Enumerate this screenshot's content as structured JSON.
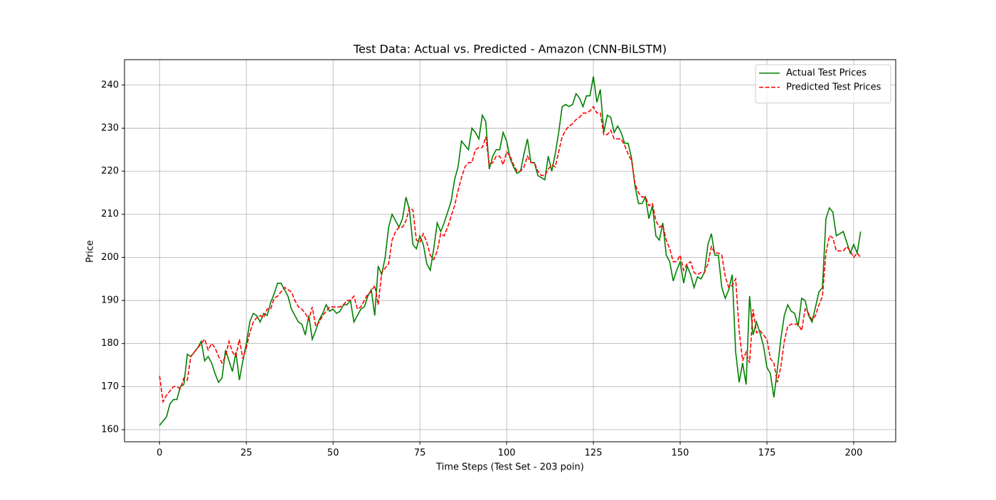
{
  "chart_data": {
    "type": "line",
    "title": "Test Data: Actual vs. Predicted - Amazon (CNN-BiLSTM)",
    "x_label": "Time Steps (Test Set - 203 poin)",
    "y_label": "Price",
    "x": [
      0,
      1,
      2,
      3,
      4,
      5,
      6,
      7,
      8,
      9,
      10,
      11,
      12,
      13,
      14,
      15,
      16,
      17,
      18,
      19,
      20,
      21,
      22,
      23,
      24,
      25,
      26,
      27,
      28,
      29,
      30,
      31,
      32,
      33,
      34,
      35,
      36,
      37,
      38,
      39,
      40,
      41,
      42,
      43,
      44,
      45,
      46,
      47,
      48,
      49,
      50,
      51,
      52,
      53,
      54,
      55,
      56,
      57,
      58,
      59,
      60,
      61,
      62,
      63,
      64,
      65,
      66,
      67,
      68,
      69,
      70,
      71,
      72,
      73,
      74,
      75,
      76,
      77,
      78,
      79,
      80,
      81,
      82,
      83,
      84,
      85,
      86,
      87,
      88,
      89,
      90,
      91,
      92,
      93,
      94,
      95,
      96,
      97,
      98,
      99,
      100,
      101,
      102,
      103,
      104,
      105,
      106,
      107,
      108,
      109,
      110,
      111,
      112,
      113,
      114,
      115,
      116,
      117,
      118,
      119,
      120,
      121,
      122,
      123,
      124,
      125,
      126,
      127,
      128,
      129,
      130,
      131,
      132,
      133,
      134,
      135,
      136,
      137,
      138,
      139,
      140,
      141,
      142,
      143,
      144,
      145,
      146,
      147,
      148,
      149,
      150,
      151,
      152,
      153,
      154,
      155,
      156,
      157,
      158,
      159,
      160,
      161,
      162,
      163,
      164,
      165,
      166,
      167,
      168,
      169,
      170,
      171,
      172,
      173,
      174,
      175,
      176,
      177,
      178,
      179,
      180,
      181,
      182,
      183,
      184,
      185,
      186,
      187,
      188,
      189,
      190,
      191,
      192,
      193,
      194,
      195,
      196,
      197,
      198,
      199,
      200,
      201,
      202
    ],
    "series": [
      {
        "name": "Actual Test Prices",
        "color": "#008000",
        "dash": "solid",
        "values": [
          161,
          162,
          163,
          166,
          167,
          167,
          170,
          170.5,
          177.5,
          177,
          178,
          179,
          180.5,
          176,
          177,
          175.5,
          173,
          171,
          172,
          178.5,
          176,
          173.5,
          178,
          171.5,
          176,
          180,
          185,
          187,
          186.5,
          185,
          187,
          186.5,
          189.5,
          191.5,
          194,
          194,
          192.5,
          191,
          188,
          186.5,
          185,
          184.5,
          182,
          186.5,
          181,
          183,
          185.5,
          187,
          189,
          187.5,
          188,
          187,
          187.5,
          189,
          189,
          190,
          185,
          186.5,
          188,
          188.5,
          191,
          192.5,
          186.5,
          198,
          196,
          200,
          207,
          210,
          208.5,
          207,
          209,
          214,
          211,
          203,
          202,
          205,
          203,
          198.5,
          197,
          202,
          208,
          206,
          208,
          210.5,
          213,
          218,
          221,
          227,
          226,
          225,
          230,
          229,
          227.5,
          233,
          231.5,
          220.5,
          223.5,
          225,
          225,
          229,
          227,
          223,
          221,
          219.5,
          220,
          224,
          227.5,
          222,
          222,
          219,
          218.5,
          218,
          223.5,
          220,
          224,
          229,
          235,
          235.5,
          235,
          235.5,
          238,
          237,
          235,
          237.5,
          237.5,
          242,
          236,
          239,
          229,
          233,
          232.5,
          229,
          230.5,
          229,
          226.5,
          226.5,
          223,
          216.5,
          212.5,
          212.5,
          214,
          209,
          212,
          205,
          204,
          208,
          200.5,
          199,
          194.5,
          197,
          199,
          194,
          198,
          196,
          193,
          195.5,
          195,
          196.5,
          203,
          205.5,
          200.5,
          200.5,
          193,
          190.5,
          192.5,
          196,
          178,
          171,
          175.5,
          170.5,
          191,
          182,
          185,
          182.5,
          179.5,
          174.5,
          173,
          167.5,
          174,
          181,
          186.5,
          189,
          187.5,
          187,
          184,
          190.5,
          190,
          186.5,
          185,
          188.5,
          192,
          193,
          209,
          211.5,
          210.5,
          205,
          205.5,
          206,
          203.5,
          201,
          203,
          201,
          206
        ]
      },
      {
        "name": "Predicted Test Prices",
        "color": "#ff0000",
        "dash": "dashed",
        "values": [
          172.5,
          166.5,
          168,
          169,
          170,
          170,
          169.5,
          172,
          171.5,
          177,
          178,
          179,
          180,
          181,
          178.5,
          180,
          179,
          177,
          175.5,
          177,
          180.5,
          178,
          177,
          181,
          176.5,
          179,
          182.5,
          185,
          186,
          186.5,
          186,
          188,
          188,
          190.5,
          191,
          192,
          193,
          192.5,
          192,
          190,
          188.5,
          188,
          187,
          185.5,
          188.5,
          184,
          185,
          186.5,
          187.5,
          188.5,
          188.5,
          188.5,
          188.5,
          189,
          190,
          190,
          191,
          188,
          188.5,
          190,
          191.5,
          192,
          193.5,
          189,
          196.5,
          197.5,
          198.5,
          204,
          206,
          207,
          207,
          208.5,
          211.5,
          211,
          204,
          203.5,
          205.5,
          203.5,
          200.5,
          199.5,
          201.5,
          205.5,
          205,
          207,
          209.5,
          212,
          215.5,
          218.5,
          221,
          222,
          222,
          225,
          225.5,
          225.5,
          228,
          221.5,
          222,
          223.5,
          223.5,
          221.5,
          224.5,
          223.5,
          221.5,
          220,
          220,
          221,
          223.5,
          222,
          222,
          220,
          219,
          219,
          220.5,
          221.5,
          221,
          224.5,
          228,
          229.5,
          230.5,
          231,
          232,
          232.5,
          233.5,
          233.5,
          234,
          235,
          233.5,
          233.5,
          228.5,
          228.5,
          229.5,
          227.5,
          227.5,
          227.5,
          226,
          224,
          222.5,
          217,
          215,
          214,
          214,
          212,
          212.5,
          208.5,
          207,
          207.5,
          204,
          202,
          199,
          199,
          200.5,
          197,
          198.5,
          199,
          196.5,
          196,
          196.5,
          196.5,
          198.5,
          202.5,
          201,
          201,
          200.5,
          195.5,
          193,
          193.5,
          195,
          183,
          176,
          178,
          175.5,
          188,
          182.5,
          183,
          182,
          181,
          176.5,
          175.5,
          171,
          174.5,
          180.5,
          184,
          184.5,
          184.5,
          184.5,
          183,
          188,
          187,
          185.5,
          186.5,
          189,
          191,
          201,
          205,
          204.5,
          201.5,
          201.5,
          201.5,
          202.5,
          201.5,
          200,
          201,
          200
        ]
      }
    ],
    "xlim": [
      -10.1,
      212.1
    ],
    "xticks": [
      0,
      25,
      50,
      75,
      100,
      125,
      150,
      175,
      200
    ],
    "ylim": [
      157.2,
      245.9
    ],
    "yticks": [
      160,
      170,
      180,
      190,
      200,
      210,
      220,
      230,
      240
    ],
    "grid": true,
    "legend": "upper right"
  }
}
